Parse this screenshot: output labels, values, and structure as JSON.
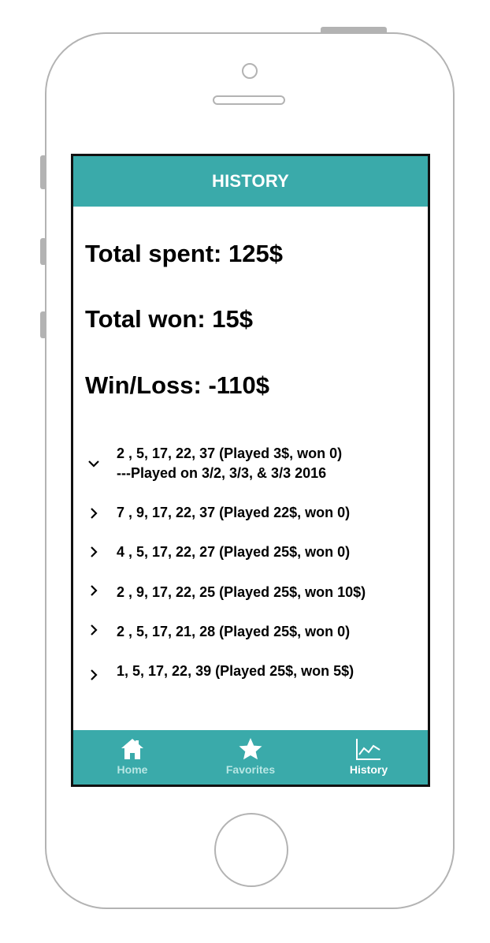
{
  "header": {
    "title": "HISTORY"
  },
  "stats": {
    "total_spent": "Total spent: 125$",
    "total_won": "Total won: 15$",
    "win_loss": "Win/Loss: -110$"
  },
  "history": [
    {
      "line1": "2 , 5, 17, 22, 37 (Played 3$, won 0)",
      "line2": "---Played on 3/2, 3/3, & 3/3 2016",
      "expanded": true
    },
    {
      "line1": "7 , 9, 17, 22, 37 (Played 22$, won 0)",
      "expanded": false
    },
    {
      "line1": "4 , 5, 17, 22, 27 (Played 25$, won 0)",
      "expanded": false
    },
    {
      "line1": "2 , 9, 17, 22, 25 (Played 25$, won 10$)",
      "expanded": false
    },
    {
      "line1": "2 , 5, 17, 21, 28 (Played 25$, won 0)",
      "expanded": false
    },
    {
      "line1": "1, 5, 17, 22, 39 (Played 25$, won 5$)",
      "expanded": false
    }
  ],
  "tabbar": {
    "tabs": [
      {
        "label": "Home",
        "icon": "home-icon",
        "active": false
      },
      {
        "label": "Favorites",
        "icon": "star-icon",
        "active": false
      },
      {
        "label": "History",
        "icon": "chart-line-icon",
        "active": true
      }
    ]
  },
  "colors": {
    "accent": "#3aaaaa",
    "inactive_label": "#b8e6e4",
    "frame": "#b3b3b3"
  }
}
